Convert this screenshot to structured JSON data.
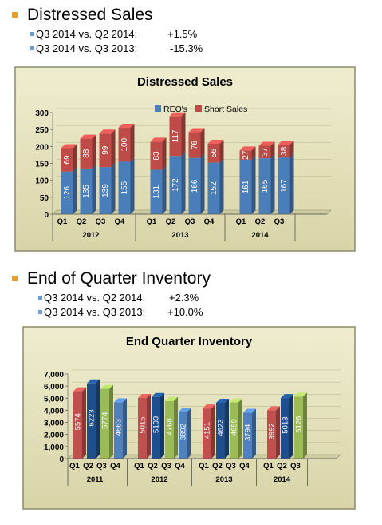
{
  "sections": [
    {
      "title": "Distressed Sales",
      "bullets": [
        {
          "label": "Q3 2014 vs. Q2 2014:",
          "value": "+1.5%"
        },
        {
          "label": "Q3 2014 vs. Q3 2013:",
          "value": "-15.3%"
        }
      ]
    },
    {
      "title": "End of Quarter Inventory",
      "bullets": [
        {
          "label": "Q3 2014 vs. Q2 2014:",
          "value": "+2.3%"
        },
        {
          "label": "Q3 2014 vs. Q3 2013:",
          "value": "+10.0%"
        }
      ]
    }
  ],
  "colors": {
    "accent_bullet": "#f29b1f",
    "sub_bullet": "#6f9ad0",
    "reo": "#4a7ebb",
    "short_sales": "#be4b48",
    "q1": "#c0504d",
    "q2": "#1f4e8c",
    "q3": "#9bbb59",
    "q4": "#4f81bd",
    "panel": "#d8d4a8"
  },
  "chart_data": [
    {
      "type": "bar",
      "stacked": true,
      "title": "Distressed Sales",
      "legend": [
        "REO's",
        "Short Sales"
      ],
      "legend_position": "top-right",
      "ylim": [
        0,
        300
      ],
      "yticks": [
        "0",
        "50",
        "100",
        "150",
        "200",
        "250",
        "300"
      ],
      "groups": [
        {
          "year": "2012",
          "quarters": [
            "Q1",
            "Q2",
            "Q3",
            "Q4"
          ]
        },
        {
          "year": "2013",
          "quarters": [
            "Q1",
            "Q2",
            "Q3",
            "Q4"
          ]
        },
        {
          "year": "2014",
          "quarters": [
            "Q1",
            "Q2",
            "Q3"
          ]
        }
      ],
      "series": [
        {
          "name": "REO's",
          "values": [
            126,
            135,
            139,
            155,
            131,
            172,
            166,
            152,
            161,
            165,
            167
          ]
        },
        {
          "name": "Short Sales",
          "values": [
            69,
            88,
            99,
            100,
            83,
            117,
            76,
            56,
            27,
            37,
            38
          ]
        }
      ]
    },
    {
      "type": "bar",
      "title": "End Quarter Inventory",
      "ylim": [
        0,
        7000
      ],
      "yticks": [
        "0",
        "1,000",
        "2,000",
        "3,000",
        "4,000",
        "5,000",
        "6,000",
        "7,000"
      ],
      "groups": [
        {
          "year": "2011",
          "quarters": [
            "Q1",
            "Q2",
            "Q3",
            "Q4"
          ]
        },
        {
          "year": "2012",
          "quarters": [
            "Q1",
            "Q2",
            "Q3",
            "Q4"
          ]
        },
        {
          "year": "2013",
          "quarters": [
            "Q1",
            "Q2",
            "Q3",
            "Q4"
          ]
        },
        {
          "year": "2014",
          "quarters": [
            "Q1",
            "Q2",
            "Q3"
          ]
        }
      ],
      "values": [
        5574,
        6223,
        5774,
        4663,
        5015,
        5100,
        4768,
        3892,
        4151,
        4623,
        4659,
        3794,
        3992,
        5013,
        5126
      ]
    }
  ]
}
